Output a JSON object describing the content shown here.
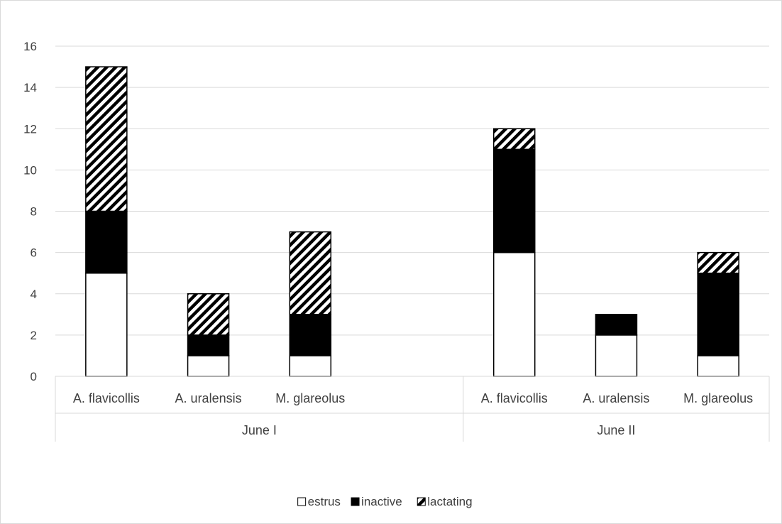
{
  "chart_data": {
    "type": "bar",
    "stacked": true,
    "groups": [
      {
        "label": "June I",
        "categories": [
          "A. flavicollis",
          "A. uralensis",
          "M. glareolus"
        ]
      },
      {
        "label": "June II",
        "categories": [
          "A. flavicollis",
          "A. uralensis",
          "M. glareolus"
        ]
      }
    ],
    "series": [
      {
        "name": "estrus",
        "fill": "#ffffff",
        "pattern": "none",
        "values": [
          5,
          1,
          1,
          6,
          2,
          1
        ]
      },
      {
        "name": "inactive",
        "fill": "#000000",
        "pattern": "none",
        "values": [
          3,
          1,
          2,
          5,
          1,
          4
        ]
      },
      {
        "name": "lactating",
        "fill": "#ffffff",
        "pattern": "diagonal-hatch",
        "values": [
          7,
          2,
          4,
          1,
          0,
          1
        ]
      }
    ],
    "ylim": [
      0,
      16
    ],
    "yticks": [
      "0",
      "2",
      "4",
      "6",
      "8",
      "10",
      "12",
      "14",
      "16"
    ],
    "grid": true,
    "legend_position": "bottom",
    "gridline_color": "#d9d9d9",
    "bar_outline_color": "#000000"
  }
}
